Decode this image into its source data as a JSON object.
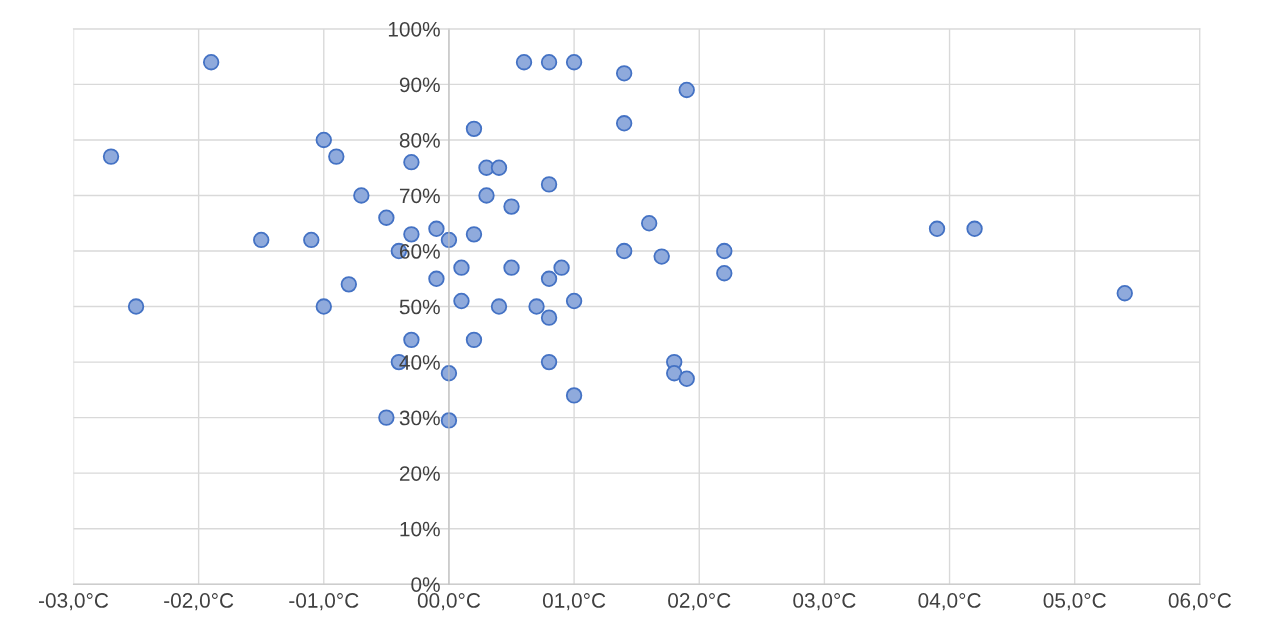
{
  "chart_data": {
    "type": "scatter",
    "x": [
      -2.7,
      -2.5,
      -1.9,
      -1.5,
      -1.1,
      -1.0,
      -0.9,
      -1.0,
      -0.8,
      -0.7,
      -0.5,
      -0.3,
      -0.3,
      -0.4,
      -0.1,
      0.0,
      -0.1,
      -0.3,
      -0.4,
      -0.5,
      0.0,
      0.0,
      0.1,
      0.1,
      0.2,
      0.2,
      0.2,
      0.3,
      0.4,
      0.3,
      0.5,
      0.5,
      0.4,
      0.6,
      0.8,
      1.0,
      0.8,
      0.8,
      0.9,
      0.7,
      0.8,
      1.0,
      0.8,
      1.0,
      1.4,
      1.4,
      1.4,
      1.6,
      1.7,
      1.9,
      1.8,
      1.8,
      1.9,
      2.2,
      2.2,
      3.9,
      4.2,
      5.4
    ],
    "values": [
      77,
      50,
      94,
      62,
      62,
      80,
      77,
      50,
      54,
      70,
      66,
      76,
      63,
      60,
      64,
      62,
      55,
      44,
      40,
      30,
      38,
      29.5,
      57,
      51,
      82,
      63,
      44,
      75,
      75,
      70,
      68,
      57,
      50,
      94,
      94,
      94,
      72,
      55,
      57,
      50,
      48,
      51,
      40,
      34,
      92,
      83,
      60,
      65,
      59,
      89,
      40,
      38,
      37,
      60,
      56,
      64,
      64,
      52.4
    ],
    "color": "#8faadc",
    "marker": "circle",
    "xlim": [
      -3,
      6
    ],
    "xticks": [
      {
        "value": -3,
        "label": "-03,0°C"
      },
      {
        "value": -2,
        "label": "-02,0°C"
      },
      {
        "value": -1,
        "label": "-01,0°C"
      },
      {
        "value": 0,
        "label": "00,0°C"
      },
      {
        "value": 1,
        "label": "01,0°C"
      },
      {
        "value": 2,
        "label": "02,0°C"
      },
      {
        "value": 3,
        "label": "03,0°C"
      },
      {
        "value": 4,
        "label": "04,0°C"
      },
      {
        "value": 5,
        "label": "05,0°C"
      },
      {
        "value": 6,
        "label": "06,0°C"
      }
    ],
    "ylim": [
      0,
      100
    ],
    "yticks": [
      {
        "value": 0,
        "label": "0%"
      },
      {
        "value": 10,
        "label": "10%"
      },
      {
        "value": 20,
        "label": "20%"
      },
      {
        "value": 30,
        "label": "30%"
      },
      {
        "value": 40,
        "label": "40%"
      },
      {
        "value": 50,
        "label": "50%"
      },
      {
        "value": 60,
        "label": "60%"
      },
      {
        "value": 70,
        "label": "70%"
      },
      {
        "value": 80,
        "label": "80%"
      },
      {
        "value": 90,
        "label": "90%"
      },
      {
        "value": 100,
        "label": "100%"
      }
    ],
    "grid": true
  }
}
